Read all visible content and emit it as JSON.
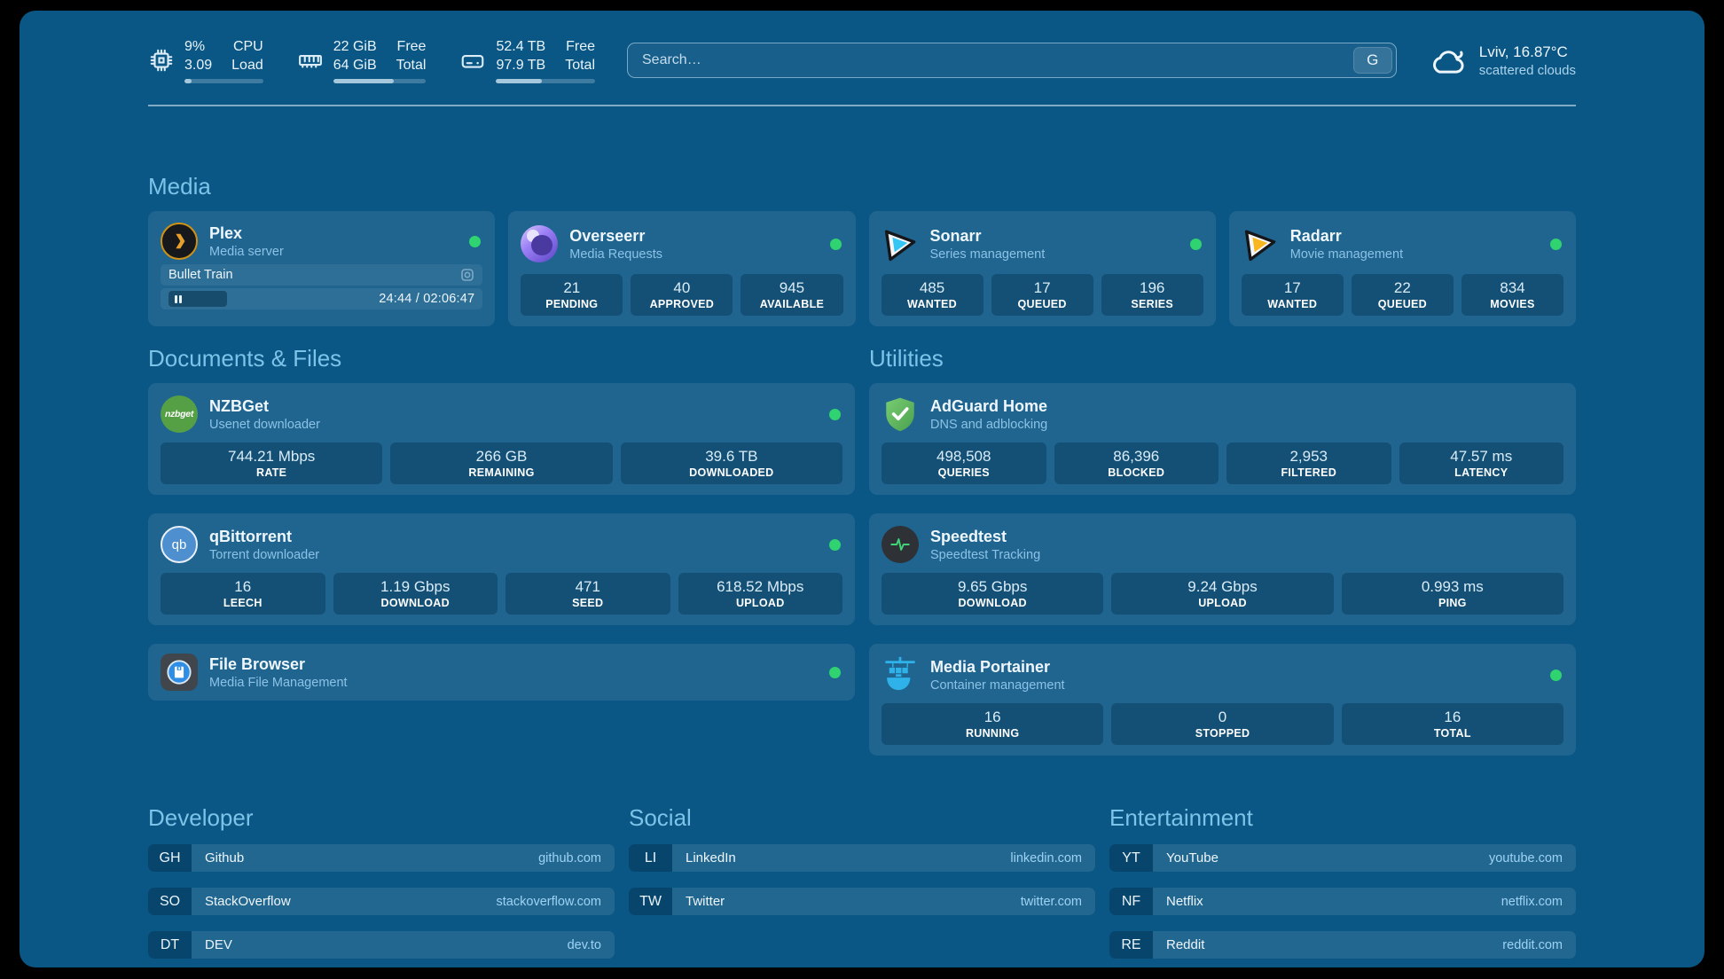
{
  "colors": {
    "page_bg": "#0a5684",
    "card_bg": "#1f6590",
    "section_title": "#7cc3ea",
    "status_online": "#2fd36f",
    "link_text": "#9ed2f4"
  },
  "topbar": {
    "resources": [
      {
        "icon": "cpu-icon",
        "values": [
          "9%",
          "3.09"
        ],
        "labels": [
          "CPU",
          "Load"
        ],
        "progress_pct": 9
      },
      {
        "icon": "memory-icon",
        "values": [
          "22 GiB",
          "64 GiB"
        ],
        "labels": [
          "Free",
          "Total"
        ],
        "progress_pct": 65
      },
      {
        "icon": "disk-icon",
        "values": [
          "52.4 TB",
          "97.9 TB"
        ],
        "labels": [
          "Free",
          "Total"
        ],
        "progress_pct": 46
      }
    ],
    "search": {
      "placeholder": "Search…",
      "provider_button": "G"
    },
    "weather": {
      "icon": "cloud-icon",
      "location_temp": "Lviv, 16.87°C",
      "condition": "scattered clouds"
    }
  },
  "media": {
    "title": "Media",
    "services": [
      {
        "name": "Plex",
        "desc": "Media server",
        "icon": "plex-icon",
        "online": true,
        "player": {
          "title": "Bullet Train",
          "time": "24:44 / 02:06:47"
        }
      },
      {
        "name": "Overseerr",
        "desc": "Media Requests",
        "icon": "overseerr-icon",
        "online": true,
        "stats": [
          {
            "value": "21",
            "label": "PENDING"
          },
          {
            "value": "40",
            "label": "APPROVED"
          },
          {
            "value": "945",
            "label": "AVAILABLE"
          }
        ]
      },
      {
        "name": "Sonarr",
        "desc": "Series management",
        "icon": "sonarr-icon",
        "online": true,
        "stats": [
          {
            "value": "485",
            "label": "WANTED"
          },
          {
            "value": "17",
            "label": "QUEUED"
          },
          {
            "value": "196",
            "label": "SERIES"
          }
        ]
      },
      {
        "name": "Radarr",
        "desc": "Movie management",
        "icon": "radarr-icon",
        "online": true,
        "stats": [
          {
            "value": "17",
            "label": "WANTED"
          },
          {
            "value": "22",
            "label": "QUEUED"
          },
          {
            "value": "834",
            "label": "MOVIES"
          }
        ]
      }
    ]
  },
  "documents": {
    "title": "Documents & Files",
    "services": [
      {
        "name": "NZBGet",
        "desc": "Usenet downloader",
        "icon": "nzbget-icon",
        "icon_text": "nzbget",
        "online": true,
        "stats": [
          {
            "value": "744.21 Mbps",
            "label": "RATE"
          },
          {
            "value": "266 GB",
            "label": "REMAINING"
          },
          {
            "value": "39.6 TB",
            "label": "DOWNLOADED"
          }
        ]
      },
      {
        "name": "qBittorrent",
        "desc": "Torrent downloader",
        "icon": "qbittorrent-icon",
        "icon_text": "qb",
        "online": true,
        "stats": [
          {
            "value": "16",
            "label": "LEECH"
          },
          {
            "value": "1.19 Gbps",
            "label": "DOWNLOAD"
          },
          {
            "value": "471",
            "label": "SEED"
          },
          {
            "value": "618.52 Mbps",
            "label": "UPLOAD"
          }
        ]
      },
      {
        "name": "File Browser",
        "desc": "Media File Management",
        "icon": "filebrowser-icon",
        "online": true
      }
    ]
  },
  "utilities": {
    "title": "Utilities",
    "services": [
      {
        "name": "AdGuard Home",
        "desc": "DNS and adblocking",
        "icon": "adguard-icon",
        "online": false,
        "stats": [
          {
            "value": "498,508",
            "label": "QUERIES"
          },
          {
            "value": "86,396",
            "label": "BLOCKED"
          },
          {
            "value": "2,953",
            "label": "FILTERED"
          },
          {
            "value": "47.57 ms",
            "label": "LATENCY"
          }
        ]
      },
      {
        "name": "Speedtest",
        "desc": "Speedtest Tracking",
        "icon": "speedtest-icon",
        "online": false,
        "stats": [
          {
            "value": "9.65 Gbps",
            "label": "DOWNLOAD"
          },
          {
            "value": "9.24 Gbps",
            "label": "UPLOAD"
          },
          {
            "value": "0.993 ms",
            "label": "PING"
          }
        ]
      },
      {
        "name": "Media Portainer",
        "desc": "Container management",
        "icon": "portainer-icon",
        "online": true,
        "stats": [
          {
            "value": "16",
            "label": "RUNNING"
          },
          {
            "value": "0",
            "label": "STOPPED"
          },
          {
            "value": "16",
            "label": "TOTAL"
          }
        ]
      }
    ]
  },
  "bookmark_groups": [
    {
      "title": "Developer",
      "items": [
        {
          "abbr": "GH",
          "name": "Github",
          "domain": "github.com"
        },
        {
          "abbr": "SO",
          "name": "StackOverflow",
          "domain": "stackoverflow.com"
        },
        {
          "abbr": "DT",
          "name": "DEV",
          "domain": "dev.to"
        }
      ]
    },
    {
      "title": "Social",
      "items": [
        {
          "abbr": "LI",
          "name": "LinkedIn",
          "domain": "linkedin.com"
        },
        {
          "abbr": "TW",
          "name": "Twitter",
          "domain": "twitter.com"
        }
      ]
    },
    {
      "title": "Entertainment",
      "items": [
        {
          "abbr": "YT",
          "name": "YouTube",
          "domain": "youtube.com"
        },
        {
          "abbr": "NF",
          "name": "Netflix",
          "domain": "netflix.com"
        },
        {
          "abbr": "RE",
          "name": "Reddit",
          "domain": "reddit.com"
        }
      ]
    }
  ]
}
